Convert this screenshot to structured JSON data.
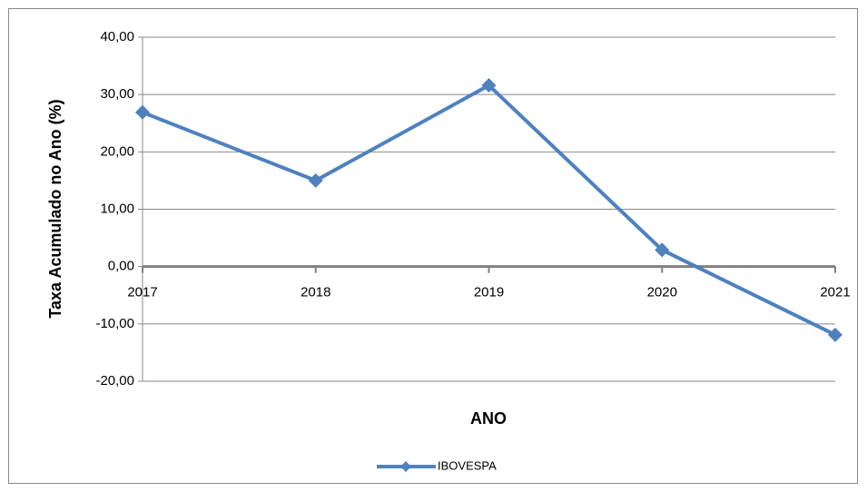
{
  "chart_data": {
    "type": "line",
    "categories": [
      "2017",
      "2018",
      "2019",
      "2020",
      "2021"
    ],
    "series": [
      {
        "name": "IBOVESPA",
        "color": "#4f81bd",
        "values": [
          26.9,
          15.0,
          31.6,
          2.9,
          -11.9
        ]
      }
    ],
    "ylim": [
      -20,
      40
    ],
    "yticks": [
      {
        "value": -20,
        "label": "-20,00"
      },
      {
        "value": -10,
        "label": "-10,00"
      },
      {
        "value": 0,
        "label": "0,00"
      },
      {
        "value": 10,
        "label": "10,00"
      },
      {
        "value": 20,
        "label": "20,00"
      },
      {
        "value": 30,
        "label": "30,00"
      },
      {
        "value": 40,
        "label": "40,00"
      }
    ],
    "y_label": "Taxa Acumulado no Ano (%)",
    "x_label": "ANO",
    "grid": true,
    "legend": "bottom"
  }
}
